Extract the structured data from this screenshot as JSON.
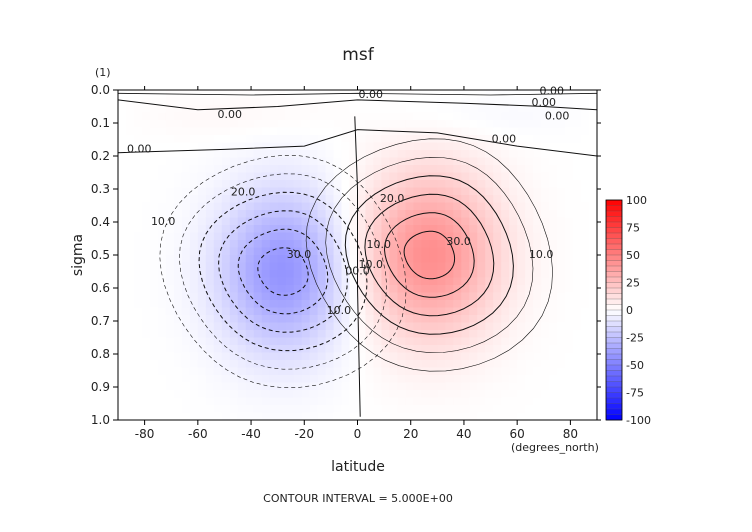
{
  "chart_data": {
    "type": "heatmap",
    "subtype": "filled-contour",
    "title": "msf",
    "xlabel": "latitude",
    "ylabel": "sigma",
    "x_units": "(degrees_north)",
    "y_units": "(1)",
    "footer": "CONTOUR INTERVAL = 5.000E+00",
    "xlim": [
      -90,
      90
    ],
    "ylim": [
      1.0,
      0.0
    ],
    "y_inverted": true,
    "grid": false,
    "x_ticks": [
      -80,
      -60,
      -40,
      -20,
      0,
      20,
      40,
      60,
      80
    ],
    "x_tick_labels": [
      "-80",
      "-60",
      "-40",
      "-20",
      "0",
      "20",
      "40",
      "60",
      "80"
    ],
    "y_ticks": [
      0.0,
      0.1,
      0.2,
      0.3,
      0.4,
      0.5,
      0.6,
      0.7,
      0.8,
      0.9,
      1.0
    ],
    "y_tick_labels": [
      "0.0",
      "0.1",
      "0.2",
      "0.3",
      "0.4",
      "0.5",
      "0.6",
      "0.7",
      "0.8",
      "0.9",
      "1.0"
    ],
    "contour_interval": 5.0,
    "colorbar": {
      "min": -100,
      "max": 100,
      "ticks": [
        100,
        75,
        50,
        25,
        0,
        -25,
        -50,
        -75,
        -100
      ],
      "tick_labels": [
        "100",
        "75",
        "50",
        "25",
        "0",
        "-25",
        "-50",
        "-75",
        "-100"
      ],
      "negative_color": "#0000ff",
      "zero_color": "#ffffff",
      "positive_color": "#ff0000"
    },
    "features": [
      {
        "name": "southern-cell",
        "sign": "negative",
        "center_lat": -28,
        "center_sigma": 0.55,
        "peak": -38
      },
      {
        "name": "northern-cell",
        "sign": "positive",
        "center_lat": 27,
        "center_sigma": 0.5,
        "peak": 40
      }
    ],
    "contour_labels": [
      {
        "text": "0.00",
        "lat": -82,
        "sigma": 0.18
      },
      {
        "text": "0.00",
        "lat": -48,
        "sigma": 0.075
      },
      {
        "text": "0.00",
        "lat": 5,
        "sigma": 0.015
      },
      {
        "text": "0.00",
        "lat": 55,
        "sigma": 0.15
      },
      {
        "text": "0.00",
        "lat": 73,
        "sigma": 0.005
      },
      {
        "text": "0.00",
        "lat": 70,
        "sigma": 0.04
      },
      {
        "text": "0.00",
        "lat": 75,
        "sigma": 0.08
      },
      {
        "text": "10.0",
        "lat": -73,
        "sigma": 0.4
      },
      {
        "text": "20.0",
        "lat": -43,
        "sigma": 0.31
      },
      {
        "text": "30.0",
        "lat": -22,
        "sigma": 0.5
      },
      {
        "text": "10.0",
        "lat": -7,
        "sigma": 0.67
      },
      {
        "text": "00.0",
        "lat": 0,
        "sigma": 0.55
      },
      {
        "text": "10.0",
        "lat": 8,
        "sigma": 0.47
      },
      {
        "text": "10.0",
        "lat": 5,
        "sigma": 0.53
      },
      {
        "text": "20.0",
        "lat": 13,
        "sigma": 0.33
      },
      {
        "text": "30.0",
        "lat": 38,
        "sigma": 0.46
      },
      {
        "text": "10.0",
        "lat": 69,
        "sigma": 0.5
      }
    ]
  }
}
